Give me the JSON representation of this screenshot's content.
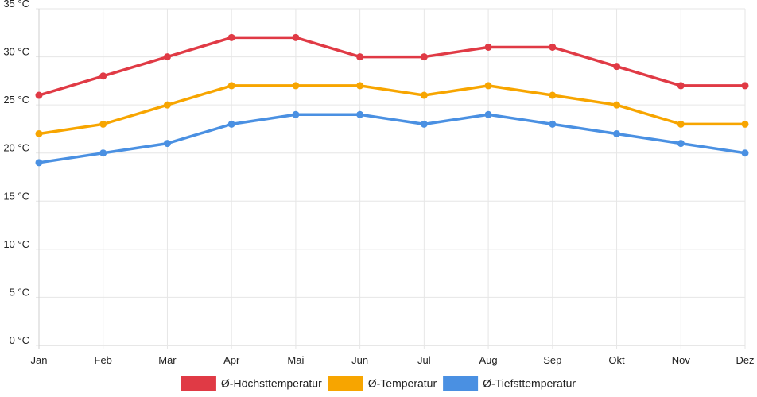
{
  "chart_data": {
    "type": "line",
    "title": "",
    "xlabel": "",
    "ylabel": "",
    "categories": [
      "Jan",
      "Feb",
      "Mär",
      "Apr",
      "Mai",
      "Jun",
      "Jul",
      "Aug",
      "Sep",
      "Okt",
      "Nov",
      "Dez"
    ],
    "ylim": [
      0,
      35
    ],
    "ytick_step": 5,
    "ytick_suffix": " °C",
    "grid": true,
    "legend_position": "bottom",
    "series": [
      {
        "name": "Ø-Höchsttemperatur",
        "color": "#e03a45",
        "values": [
          26,
          28,
          30,
          32,
          32,
          30,
          30,
          31,
          31,
          29,
          27,
          27
        ]
      },
      {
        "name": "Ø-Temperatur",
        "color": "#f7a500",
        "values": [
          22,
          23,
          25,
          27,
          27,
          27,
          26,
          27,
          26,
          25,
          23,
          23
        ]
      },
      {
        "name": "Ø-Tiefsttemperatur",
        "color": "#4a90e2",
        "values": [
          19,
          20,
          21,
          23,
          24,
          24,
          23,
          24,
          23,
          22,
          21,
          20
        ]
      }
    ]
  }
}
